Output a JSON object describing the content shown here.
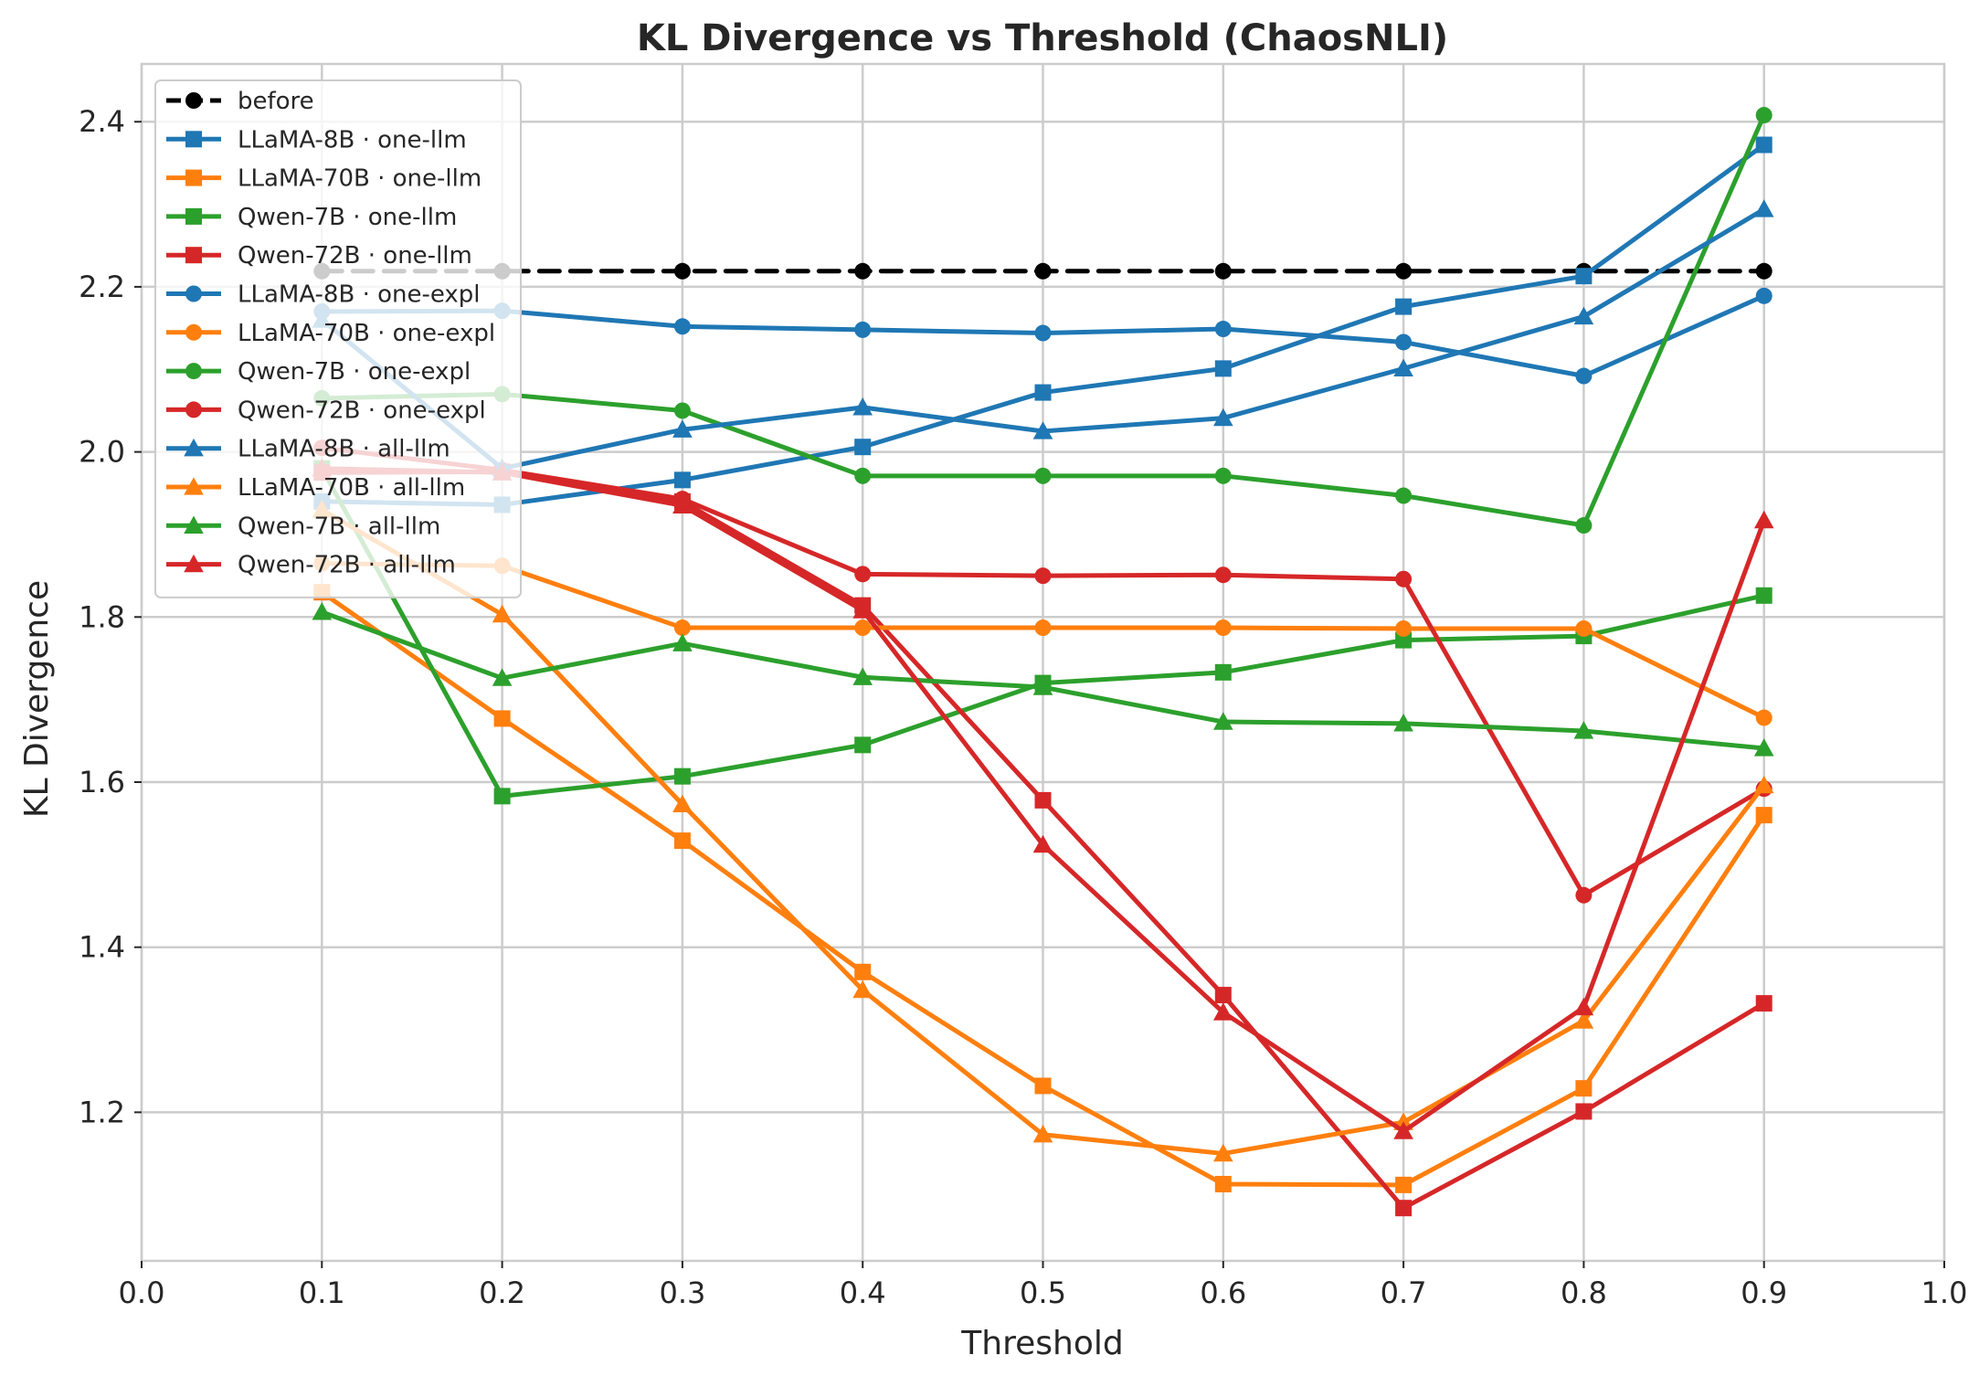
{
  "chart_data": {
    "type": "line",
    "title": "KL Divergence vs Threshold (ChaosNLI)",
    "xlabel": "Threshold",
    "ylabel": "KL Divergence",
    "xlim": [
      0.0,
      1.0
    ],
    "ylim": [
      1.02,
      2.47
    ],
    "xticks": [
      "0.0",
      "0.1",
      "0.2",
      "0.3",
      "0.4",
      "0.5",
      "0.6",
      "0.7",
      "0.8",
      "0.9",
      "1.0"
    ],
    "yticks": [
      "1.2",
      "1.4",
      "1.6",
      "1.8",
      "2.0",
      "2.2",
      "2.4"
    ],
    "grid": true,
    "legend_position": "top-left",
    "x": [
      0.1,
      0.2,
      0.3,
      0.4,
      0.5,
      0.6,
      0.7,
      0.8,
      0.9
    ],
    "series": [
      {
        "name": "before",
        "color": "#000000",
        "marker": "circle",
        "dashed": true,
        "values": [
          2.219,
          2.219,
          2.219,
          2.219,
          2.219,
          2.219,
          2.219,
          2.219,
          2.219
        ]
      },
      {
        "name": "LLaMA-8B · one-llm",
        "color": "#1f77b4",
        "marker": "square",
        "values": [
          1.94,
          1.936,
          1.966,
          2.006,
          2.072,
          2.101,
          2.176,
          2.213,
          2.372
        ]
      },
      {
        "name": "LLaMA-70B · one-llm",
        "color": "#ff7f0e",
        "marker": "square",
        "values": [
          1.83,
          1.677,
          1.529,
          1.37,
          1.232,
          1.113,
          1.112,
          1.229,
          1.56
        ]
      },
      {
        "name": "Qwen-7B · one-llm",
        "color": "#2ca02c",
        "marker": "square",
        "values": [
          1.98,
          1.583,
          1.607,
          1.645,
          1.72,
          1.733,
          1.772,
          1.777,
          1.826
        ]
      },
      {
        "name": "Qwen-72B · one-llm",
        "color": "#d62728",
        "marker": "square",
        "values": [
          1.975,
          1.976,
          1.94,
          1.814,
          1.578,
          1.342,
          1.084,
          1.201,
          1.332
        ]
      },
      {
        "name": "LLaMA-8B · one-expl",
        "color": "#1f77b4",
        "marker": "circle",
        "values": [
          2.17,
          2.171,
          2.152,
          2.148,
          2.144,
          2.149,
          2.133,
          2.092,
          2.189
        ]
      },
      {
        "name": "LLaMA-70B · one-expl",
        "color": "#ff7f0e",
        "marker": "circle",
        "values": [
          1.865,
          1.862,
          1.787,
          1.787,
          1.787,
          1.787,
          1.786,
          1.786,
          1.678
        ]
      },
      {
        "name": "Qwen-7B · one-expl",
        "color": "#2ca02c",
        "marker": "circle",
        "values": [
          2.065,
          2.07,
          2.05,
          1.971,
          1.971,
          1.971,
          1.947,
          1.911,
          2.408
        ]
      },
      {
        "name": "Qwen-72B · one-expl",
        "color": "#d62728",
        "marker": "circle",
        "values": [
          2.005,
          1.978,
          1.943,
          1.852,
          1.85,
          1.851,
          1.846,
          1.463,
          1.592
        ]
      },
      {
        "name": "LLaMA-8B · all-llm",
        "color": "#1f77b4",
        "marker": "triangle",
        "values": [
          2.16,
          1.98,
          2.027,
          2.054,
          2.025,
          2.041,
          2.101,
          2.164,
          2.294
        ]
      },
      {
        "name": "LLaMA-70B · all-llm",
        "color": "#ff7f0e",
        "marker": "triangle",
        "values": [
          1.93,
          1.803,
          1.573,
          1.348,
          1.173,
          1.15,
          1.188,
          1.311,
          1.596
        ]
      },
      {
        "name": "Qwen-7B · all-llm",
        "color": "#2ca02c",
        "marker": "triangle",
        "values": [
          1.806,
          1.726,
          1.768,
          1.727,
          1.715,
          1.673,
          1.671,
          1.662,
          1.641
        ]
      },
      {
        "name": "Qwen-72B · all-llm",
        "color": "#d62728",
        "marker": "triangle",
        "values": [
          1.98,
          1.975,
          1.935,
          1.808,
          1.524,
          1.321,
          1.177,
          1.327,
          1.917
        ]
      }
    ]
  }
}
